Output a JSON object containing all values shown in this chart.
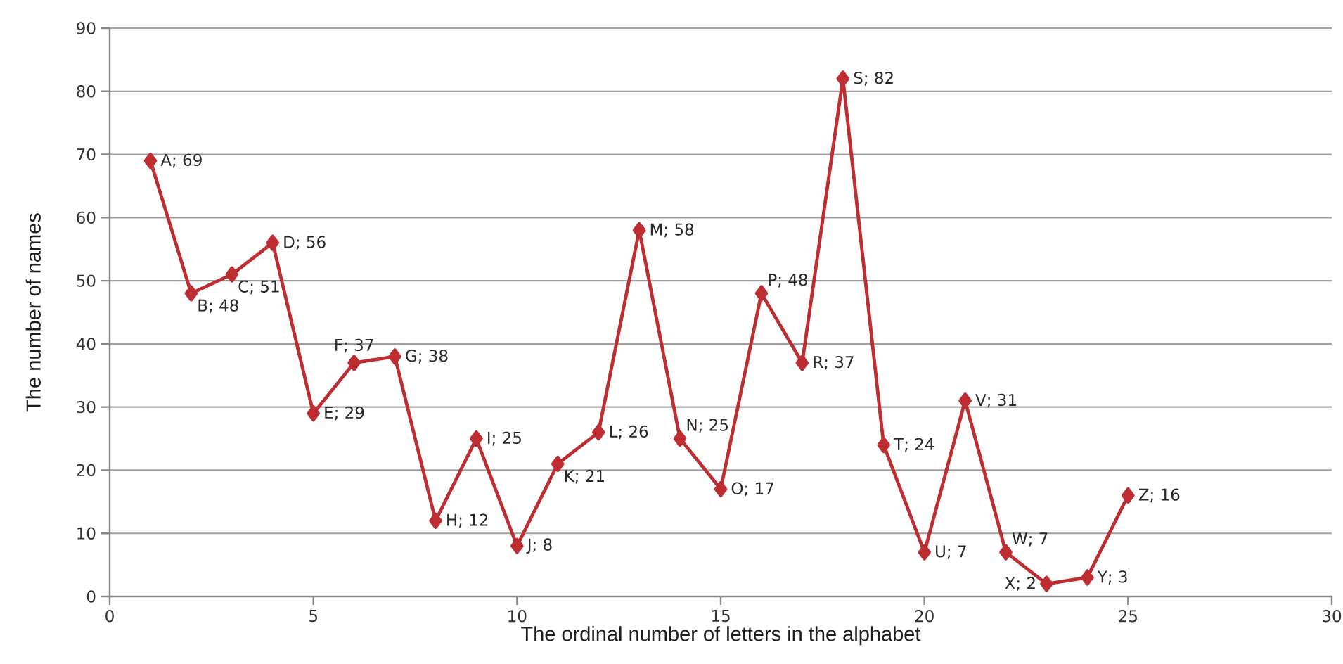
{
  "chart_data": {
    "type": "line",
    "xlabel": "The ordinal number of letters in the alphabet",
    "ylabel": "The number of names",
    "x": [
      1,
      2,
      3,
      4,
      5,
      6,
      7,
      8,
      9,
      10,
      11,
      12,
      13,
      14,
      15,
      16,
      17,
      18,
      19,
      20,
      21,
      22,
      23,
      24,
      25
    ],
    "series": [
      {
        "color": "#be2d32",
        "values": [
          69,
          48,
          51,
          56,
          29,
          37,
          38,
          12,
          25,
          8,
          21,
          26,
          58,
          25,
          17,
          48,
          37,
          82,
          24,
          7,
          31,
          7,
          2,
          3,
          16
        ],
        "value_labels": [
          "A; 69",
          "B; 48",
          "C; 51",
          "D; 56",
          "E; 29",
          "F; 37",
          "G; 38",
          "H; 12",
          "I; 25",
          "J; 8",
          "K; 21",
          "L; 26",
          "M; 58",
          "N; 25",
          "O; 17",
          "P; 48",
          "R; 37",
          "S; 82",
          "T; 24",
          "U; 7",
          "V; 31",
          "W; 7",
          "X; 2",
          "Y; 3",
          "Z; 16"
        ]
      }
    ],
    "xlim": [
      0,
      30
    ],
    "xticks": [
      0,
      5,
      10,
      15,
      20,
      25,
      30
    ],
    "ylim": [
      0,
      90
    ],
    "yticks": [
      0,
      10,
      20,
      30,
      40,
      50,
      60,
      70,
      80,
      90
    ],
    "grid": "y",
    "marker": "diamond",
    "line_style": "solid"
  }
}
